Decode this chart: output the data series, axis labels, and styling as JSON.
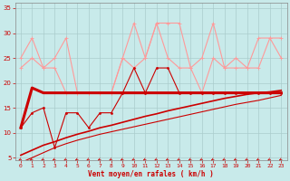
{
  "bg_color": "#c8eaea",
  "grid_color": "#aacccc",
  "xlabel": "Vent moyen/en rafales ( km/h )",
  "xlabel_color": "#cc0000",
  "tick_color": "#cc0000",
  "ylim": [
    4.5,
    36
  ],
  "xlim": [
    -0.5,
    23.5
  ],
  "yticks": [
    5,
    10,
    15,
    20,
    25,
    30,
    35
  ],
  "xticks": [
    0,
    1,
    2,
    3,
    4,
    5,
    6,
    7,
    8,
    9,
    10,
    11,
    12,
    13,
    14,
    15,
    16,
    17,
    18,
    19,
    20,
    21,
    22,
    23
  ],
  "dark_red": "#cc0000",
  "light_pink": "#ff9999",
  "line_mean_x": [
    0,
    1,
    2,
    3,
    4,
    5,
    6,
    7,
    8,
    9,
    10,
    11,
    12,
    13,
    14,
    15,
    16,
    17,
    18,
    19,
    20,
    21,
    22,
    23
  ],
  "line_mean_y": [
    11,
    19,
    18,
    18,
    18,
    18,
    18,
    18,
    18,
    18,
    18,
    18,
    18,
    18,
    18,
    18,
    18,
    18,
    18,
    18,
    18,
    18,
    18,
    18
  ],
  "line_obs_x": [
    0,
    1,
    2,
    3,
    4,
    5,
    6,
    7,
    8,
    9,
    10,
    11,
    12,
    13,
    14,
    15,
    16,
    17,
    18,
    19,
    20,
    21,
    22,
    23
  ],
  "line_obs_y": [
    11,
    14,
    15,
    7,
    14,
    14,
    11,
    14,
    14,
    18,
    23,
    18,
    23,
    23,
    18,
    18,
    18,
    18,
    18,
    18,
    18,
    18,
    18,
    18
  ],
  "line_diag1_x": [
    0,
    1,
    2,
    3,
    4,
    5,
    6,
    7,
    8,
    9,
    10,
    11,
    12,
    13,
    14,
    15,
    16,
    17,
    18,
    19,
    20,
    21,
    22,
    23
  ],
  "line_diag1_y": [
    5.5,
    6.5,
    7.5,
    8.2,
    9.0,
    9.7,
    10.3,
    11.0,
    11.5,
    12.1,
    12.7,
    13.3,
    13.8,
    14.4,
    14.9,
    15.4,
    15.9,
    16.4,
    16.9,
    17.3,
    17.7,
    18.0,
    18.2,
    18.5
  ],
  "line_diag2_x": [
    0,
    1,
    2,
    3,
    4,
    5,
    6,
    7,
    8,
    9,
    10,
    11,
    12,
    13,
    14,
    15,
    16,
    17,
    18,
    19,
    20,
    21,
    22,
    23
  ],
  "line_diag2_y": [
    4.0,
    5.0,
    6.0,
    7.0,
    7.8,
    8.5,
    9.1,
    9.7,
    10.2,
    10.7,
    11.2,
    11.7,
    12.2,
    12.7,
    13.2,
    13.7,
    14.2,
    14.7,
    15.2,
    15.7,
    16.1,
    16.5,
    17.0,
    17.5
  ],
  "line_gust1_x": [
    0,
    1,
    2,
    3,
    4,
    5,
    6,
    7,
    8,
    9,
    10,
    11,
    12,
    13,
    14,
    15,
    16,
    17,
    18,
    19,
    20,
    21,
    22,
    23
  ],
  "line_gust1_y": [
    23,
    25,
    23,
    23,
    18,
    18,
    18,
    18,
    18,
    25,
    23,
    25,
    32,
    25,
    23,
    23,
    18,
    25,
    23,
    23,
    23,
    23,
    29,
    25
  ],
  "line_gust2_x": [
    0,
    1,
    2,
    3,
    4,
    5,
    6,
    7,
    8,
    9,
    10,
    11,
    12,
    13,
    14,
    15,
    16,
    17,
    18,
    19,
    20,
    21,
    22,
    23
  ],
  "line_gust2_y": [
    25,
    29,
    23,
    25,
    29,
    18,
    18,
    18,
    18,
    25,
    32,
    25,
    32,
    32,
    32,
    23,
    25,
    32,
    23,
    25,
    23,
    29,
    29,
    29
  ]
}
